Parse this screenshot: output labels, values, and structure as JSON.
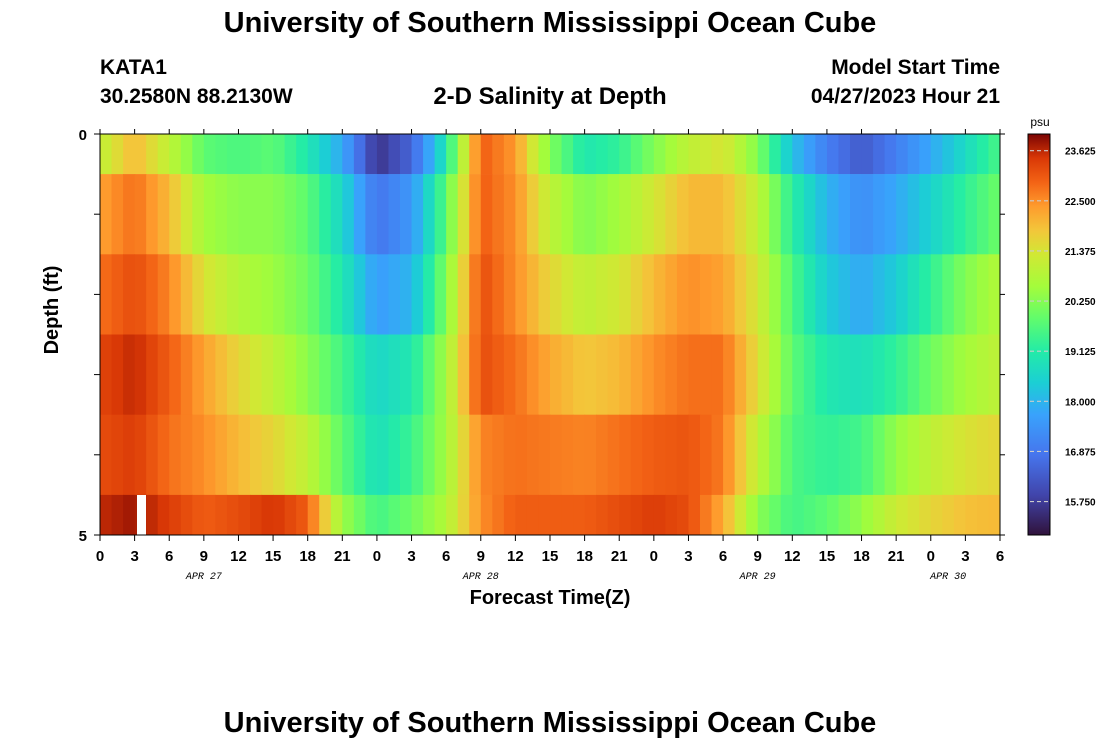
{
  "header": {
    "title": "University of Southern Mississippi Ocean Cube",
    "station": "KATA1",
    "coords": "30.2580N  88.2130W",
    "subtitle": "2-D Salinity at Depth",
    "model_start_label": "Model Start Time",
    "model_start_value": "04/27/2023 Hour 21"
  },
  "footer": {
    "title": "University of Southern Mississippi Ocean Cube"
  },
  "chart_data": {
    "type": "heatmap",
    "xlabel": "Forecast Time(Z)",
    "ylabel": "Depth (ft)",
    "ylim": [
      0,
      5
    ],
    "y_ticks": [
      "0",
      "5"
    ],
    "x_ticks": [
      "0",
      "3",
      "6",
      "9",
      "12",
      "15",
      "18",
      "21",
      "0",
      "3",
      "6",
      "9",
      "12",
      "15",
      "18",
      "21",
      "0",
      "3",
      "6",
      "9",
      "12",
      "15",
      "18",
      "21",
      "0",
      "3",
      "6"
    ],
    "date_labels": [
      {
        "label": "APR 27",
        "at_tick": 3
      },
      {
        "label": "APR 28",
        "at_tick": 11
      },
      {
        "label": "APR 29",
        "at_tick": 19
      },
      {
        "label": "APR 30",
        "at_tick": 24.5
      }
    ],
    "colorbar": {
      "unit": "psu",
      "min": 15.0,
      "max": 24.0,
      "ticks": [
        "23.625",
        "22.500",
        "21.375",
        "20.250",
        "19.125",
        "18.000",
        "16.875",
        "15.750"
      ]
    },
    "depth_bands": [
      "0-0.5",
      "0.5-1.5",
      "1.5-2.5",
      "2.5-3.5",
      "3.5-4.5",
      "4.5-5"
    ],
    "time_hours": [
      0,
      3,
      6,
      9,
      12,
      15,
      18,
      21,
      24,
      27,
      30,
      33,
      36,
      39,
      42,
      45,
      48,
      51,
      54,
      57,
      60,
      63,
      66,
      69,
      72,
      75,
      78
    ],
    "salinity": [
      [
        21.0,
        22.0,
        21.0,
        19.8,
        19.6,
        19.8,
        19.0,
        17.8,
        15.6,
        16.5,
        19.0,
        23.0,
        22.4,
        20.2,
        19.0,
        19.3,
        20.2,
        21.0,
        21.4,
        20.2,
        18.2,
        17.0,
        16.3,
        17.0,
        17.8,
        18.7,
        19.6
      ],
      [
        22.3,
        22.8,
        22.0,
        20.6,
        20.3,
        20.3,
        19.8,
        18.6,
        16.8,
        17.5,
        19.8,
        23.0,
        22.5,
        21.0,
        20.2,
        20.6,
        21.3,
        22.0,
        22.0,
        21.0,
        19.2,
        18.0,
        17.3,
        17.8,
        18.5,
        19.3,
        20.0
      ],
      [
        22.8,
        23.2,
        22.6,
        21.4,
        20.8,
        20.5,
        20.0,
        19.0,
        17.6,
        18.0,
        20.2,
        23.2,
        22.5,
        21.6,
        21.0,
        21.3,
        22.0,
        22.5,
        22.3,
        21.3,
        19.6,
        18.4,
        17.8,
        18.4,
        19.3,
        20.2,
        20.8
      ],
      [
        23.3,
        23.6,
        23.0,
        22.3,
        21.6,
        21.0,
        20.3,
        19.5,
        18.6,
        19.0,
        20.6,
        23.2,
        22.8,
        22.2,
        21.8,
        22.0,
        22.5,
        22.8,
        22.8,
        21.5,
        19.8,
        19.0,
        18.8,
        19.3,
        20.0,
        20.6,
        21.0
      ],
      [
        23.2,
        23.4,
        22.8,
        22.5,
        22.0,
        21.6,
        21.0,
        19.8,
        18.8,
        19.4,
        20.6,
        22.6,
        22.8,
        22.7,
        22.6,
        22.8,
        23.0,
        23.1,
        22.7,
        21.0,
        19.6,
        19.3,
        19.5,
        20.4,
        21.0,
        21.4,
        21.6
      ],
      [
        23.6,
        23.8,
        23.4,
        23.0,
        23.2,
        23.5,
        23.0,
        20.5,
        19.5,
        20.0,
        20.8,
        22.5,
        23.0,
        23.0,
        23.0,
        23.2,
        23.4,
        23.2,
        22.2,
        20.3,
        19.5,
        19.8,
        20.4,
        21.2,
        21.6,
        21.9,
        22.0
      ]
    ]
  }
}
